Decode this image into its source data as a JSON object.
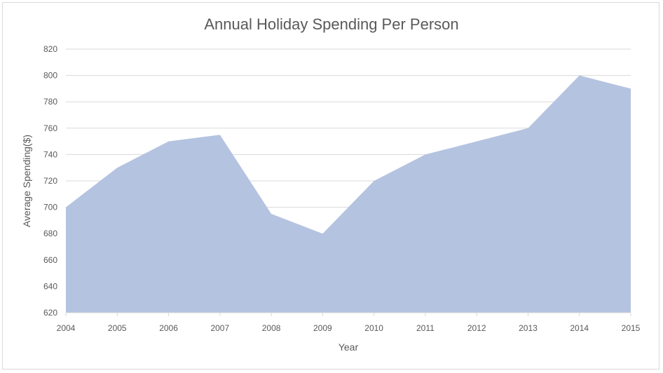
{
  "chart_data": {
    "type": "area",
    "title": "Annual Holiday Spending Per Person",
    "xlabel": "Year",
    "ylabel": "Average Spending($)",
    "x": [
      "2004",
      "2005",
      "2006",
      "2007",
      "2008",
      "2009",
      "2010",
      "2011",
      "2012",
      "2013",
      "2014",
      "2015"
    ],
    "series": [
      {
        "values": [
          700,
          730,
          750,
          755,
          695,
          680,
          720,
          740,
          750,
          760,
          800,
          790
        ]
      }
    ],
    "ylim": [
      620,
      820
    ],
    "yticks": [
      620,
      640,
      660,
      680,
      700,
      720,
      740,
      760,
      780,
      800,
      820
    ],
    "grid": true,
    "legend": "none",
    "colors": {
      "area": "#b4c3e0",
      "grid": "#d9d9d9",
      "text": "#595959"
    }
  }
}
